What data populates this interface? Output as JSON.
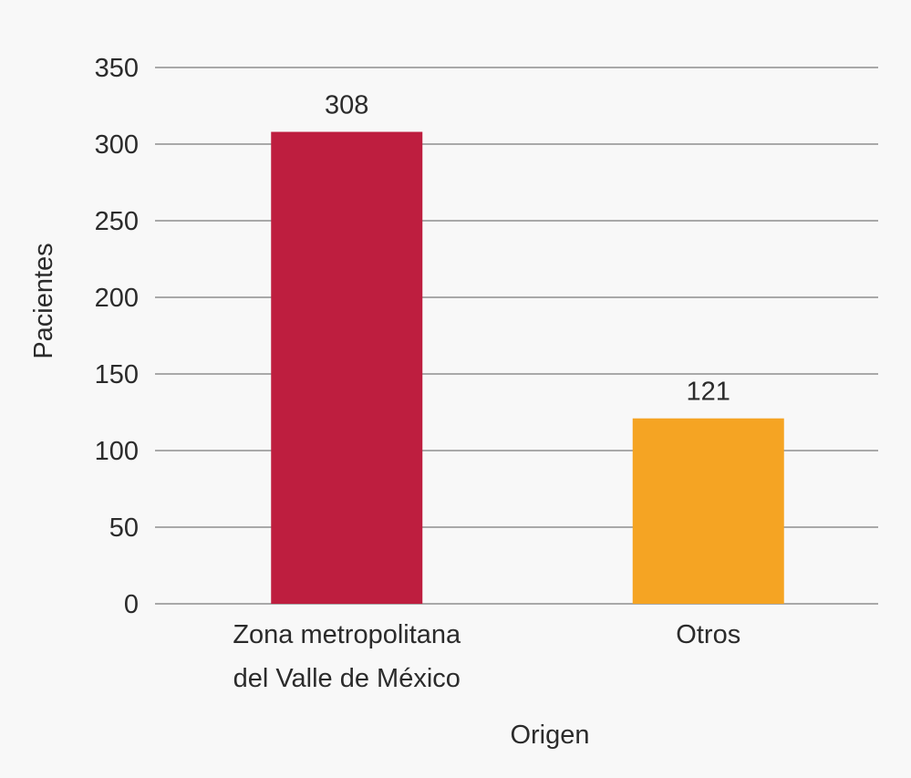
{
  "chart_data": {
    "type": "bar",
    "categories": [
      [
        "Zona metropolitana",
        "del Valle de México"
      ],
      [
        "Otros"
      ]
    ],
    "values": [
      308,
      121
    ],
    "data_labels": [
      "308",
      "121"
    ],
    "bar_colors": [
      "#be1e3f",
      "#f5a423"
    ],
    "xlabel": "Origen",
    "ylabel": "Pacientes",
    "ylim": [
      0,
      350
    ],
    "yticks": [
      0,
      50,
      100,
      150,
      200,
      250,
      300,
      350
    ],
    "ytick_labels": [
      "0",
      "50",
      "100",
      "150",
      "200",
      "250",
      "300",
      "350"
    ],
    "grid": true,
    "grid_color": "#7a7a7a",
    "background": "#f8f8f8",
    "legend": "none"
  }
}
